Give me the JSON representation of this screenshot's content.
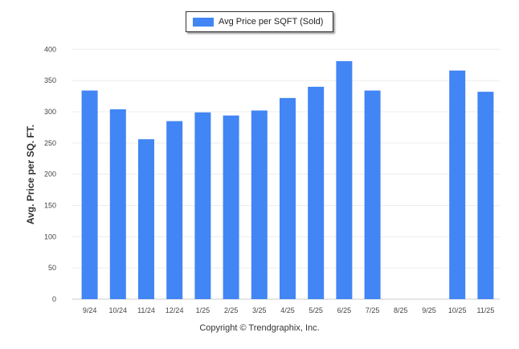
{
  "chart_data": {
    "type": "bar",
    "title": "",
    "legend": [
      "Avg Price per SQFT (Sold)"
    ],
    "legend_position": "top-center",
    "xlabel": "",
    "ylabel": "Avg. Price per SQ. FT.",
    "ylim": [
      0,
      400
    ],
    "yticks": [
      "0",
      "50",
      "100",
      "150",
      "200",
      "250",
      "300",
      "350",
      "400"
    ],
    "grid": true,
    "categories": [
      "9/24",
      "10/24",
      "11/24",
      "12/24",
      "1/25",
      "2/25",
      "3/25",
      "4/25",
      "5/25",
      "6/25",
      "7/25",
      "8/25",
      "9/25",
      "10/25",
      "11/25"
    ],
    "series": [
      {
        "name": "Avg Price per SQFT (Sold)",
        "color": "#4285f4",
        "values": [
          334,
          304,
          256,
          285,
          299,
          294,
          302,
          322,
          340,
          381,
          334,
          null,
          null,
          366,
          332
        ]
      }
    ]
  },
  "footer": {
    "copyright": "Copyright © Trendgraphix, Inc."
  }
}
